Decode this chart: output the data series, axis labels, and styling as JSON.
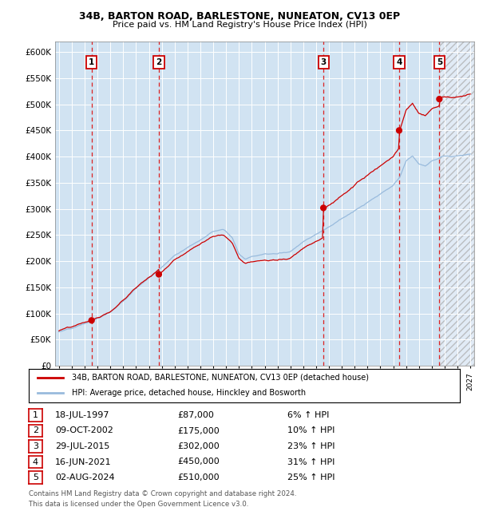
{
  "title1": "34B, BARTON ROAD, BARLESTONE, NUNEATON, CV13 0EP",
  "title2": "Price paid vs. HM Land Registry's House Price Index (HPI)",
  "ylim": [
    0,
    620000
  ],
  "xlim_start": 1994.7,
  "xlim_end": 2027.3,
  "yticks": [
    0,
    50000,
    100000,
    150000,
    200000,
    250000,
    300000,
    350000,
    400000,
    450000,
    500000,
    550000,
    600000
  ],
  "ytick_labels": [
    "£0",
    "£50K",
    "£100K",
    "£150K",
    "£200K",
    "£250K",
    "£300K",
    "£350K",
    "£400K",
    "£450K",
    "£500K",
    "£550K",
    "£600K"
  ],
  "sale_color": "#cc0000",
  "hpi_color": "#99bbdd",
  "bg_color": "#dce8f5",
  "dashed_color": "#dd2222",
  "future_hatch_color": "#bbbbbb",
  "sales": [
    {
      "num": 1,
      "date_dec": 1997.54,
      "price": 87000
    },
    {
      "num": 2,
      "date_dec": 2002.77,
      "price": 175000
    },
    {
      "num": 3,
      "date_dec": 2015.57,
      "price": 302000
    },
    {
      "num": 4,
      "date_dec": 2021.46,
      "price": 450000
    },
    {
      "num": 5,
      "date_dec": 2024.59,
      "price": 510000
    }
  ],
  "future_start": 2024.65,
  "legend_sale_label": "34B, BARTON ROAD, BARLESTONE, NUNEATON, CV13 0EP (detached house)",
  "legend_hpi_label": "HPI: Average price, detached house, Hinckley and Bosworth",
  "footnote1": "Contains HM Land Registry data © Crown copyright and database right 2024.",
  "footnote2": "This data is licensed under the Open Government Licence v3.0.",
  "table_rows": [
    [
      "1",
      "18-JUL-1997",
      "£87,000",
      "6% ↑ HPI"
    ],
    [
      "2",
      "09-OCT-2002",
      "£175,000",
      "10% ↑ HPI"
    ],
    [
      "3",
      "29-JUL-2015",
      "£302,000",
      "23% ↑ HPI"
    ],
    [
      "4",
      "16-JUN-2021",
      "£450,000",
      "31% ↑ HPI"
    ],
    [
      "5",
      "02-AUG-2024",
      "£510,000",
      "25% ↑ HPI"
    ]
  ]
}
